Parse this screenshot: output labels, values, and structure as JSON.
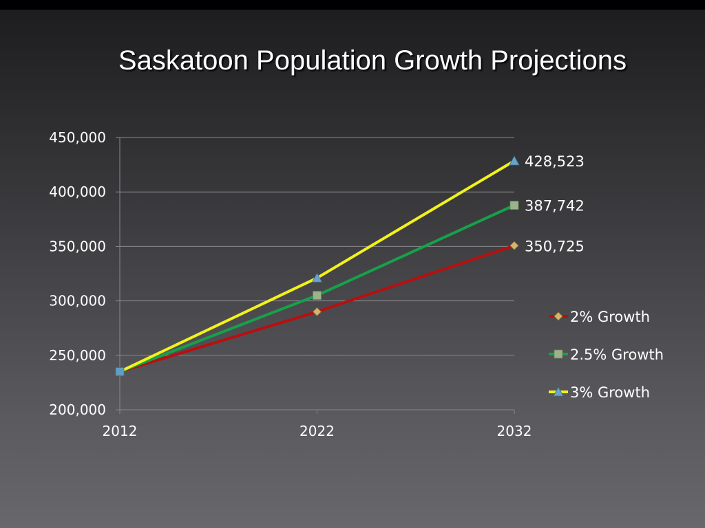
{
  "slide": {
    "title": "Saskatoon Population Growth Projections"
  },
  "chart_data": {
    "type": "line",
    "title": "Saskatoon Population Growth Projections",
    "xlabel": "",
    "ylabel": "",
    "categories": [
      "2012",
      "2022",
      "2032"
    ],
    "ylim": [
      200000,
      450000
    ],
    "y_ticks": [
      "200,000",
      "250,000",
      "300,000",
      "350,000",
      "400,000",
      "450,000"
    ],
    "y_tick_values": [
      200000,
      250000,
      300000,
      350000,
      400000,
      450000
    ],
    "grid": true,
    "legend_position": "right",
    "series": [
      {
        "name": "2% Growth",
        "values": [
          235000,
          290000,
          350725
        ],
        "color": "#b80f0f",
        "marker": "diamond",
        "marker_color": "#d6b46c",
        "end_label": "350,725"
      },
      {
        "name": "2.5% Growth",
        "values": [
          235000,
          305000,
          387742
        ],
        "color": "#16a14a",
        "marker": "square",
        "marker_color": "#9cb38a",
        "end_label": "387,742"
      },
      {
        "name": "3% Growth",
        "values": [
          235000,
          321000,
          428523
        ],
        "color": "#f2f21c",
        "marker": "triangle",
        "marker_color": "#6aa3c8",
        "end_label": "428,523"
      }
    ]
  }
}
